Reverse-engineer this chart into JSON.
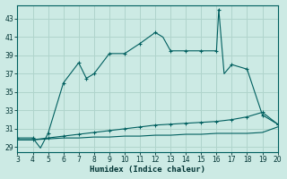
{
  "xlabel": "Humidex (Indice chaleur)",
  "background_color": "#cceae4",
  "grid_color": "#b0d4cc",
  "line_color": "#005f5f",
  "xlim": [
    3,
    20
  ],
  "ylim": [
    28.5,
    44.5
  ],
  "xticks": [
    3,
    4,
    5,
    6,
    7,
    8,
    9,
    10,
    11,
    12,
    13,
    14,
    15,
    16,
    17,
    18,
    19,
    20
  ],
  "yticks": [
    29,
    31,
    33,
    35,
    37,
    39,
    41,
    43
  ],
  "main_x": [
    3,
    4,
    4.5,
    5,
    6,
    7,
    7.5,
    8,
    9,
    10,
    11,
    12,
    12.5,
    13,
    14,
    15,
    16,
    16.15,
    16.5,
    17,
    18,
    19,
    20
  ],
  "main_y": [
    30.0,
    30.0,
    28.9,
    30.5,
    36.0,
    38.2,
    36.5,
    37.0,
    39.2,
    39.2,
    40.3,
    41.5,
    41.0,
    39.5,
    39.5,
    39.5,
    39.5,
    44.0,
    37.0,
    38.0,
    37.5,
    32.5,
    31.5
  ],
  "main_mark_x": [
    3,
    4,
    5,
    6,
    7,
    7.5,
    8,
    9,
    10,
    11,
    12,
    13,
    14,
    15,
    16,
    16.15,
    17,
    18,
    19,
    20
  ],
  "main_mark_y": [
    30.0,
    30.0,
    30.5,
    36.0,
    38.2,
    36.5,
    37.0,
    39.2,
    39.2,
    40.3,
    41.5,
    39.5,
    39.5,
    39.5,
    39.5,
    44.0,
    38.0,
    37.5,
    32.5,
    31.5
  ],
  "upper_x": [
    3,
    4,
    5,
    6,
    7,
    8,
    9,
    10,
    11,
    12,
    13,
    14,
    15,
    16,
    17,
    18,
    19,
    20
  ],
  "upper_y": [
    29.8,
    29.8,
    30.0,
    30.2,
    30.4,
    30.6,
    30.8,
    31.0,
    31.2,
    31.4,
    31.5,
    31.6,
    31.7,
    31.8,
    32.0,
    32.3,
    32.8,
    31.5
  ],
  "lower_x": [
    3,
    4,
    5,
    6,
    7,
    8,
    9,
    10,
    11,
    12,
    13,
    14,
    15,
    16,
    17,
    18,
    19,
    20
  ],
  "lower_y": [
    29.8,
    29.8,
    29.9,
    30.0,
    30.0,
    30.1,
    30.1,
    30.2,
    30.2,
    30.3,
    30.3,
    30.4,
    30.4,
    30.5,
    30.5,
    30.5,
    30.6,
    31.2
  ]
}
